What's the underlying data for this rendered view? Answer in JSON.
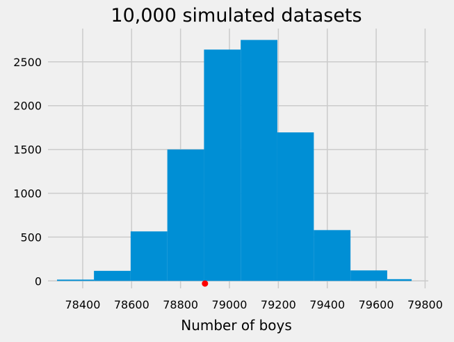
{
  "chart_data": {
    "type": "bar",
    "title": "10,000 simulated datasets",
    "xlabel": "Number of boys",
    "ylabel": "",
    "xlim": [
      78258,
      79813
    ],
    "ylim": [
      -85,
      2880
    ],
    "xticks": [
      78400,
      78600,
      78800,
      79000,
      79200,
      79400,
      79600,
      79800
    ],
    "xtick_labels": [
      "78400",
      "78600",
      "78800",
      "79000",
      "79200",
      "79400",
      "79600",
      "79800"
    ],
    "yticks": [
      0,
      500,
      1000,
      1500,
      2000,
      2500
    ],
    "ytick_labels": [
      "0",
      "500",
      "1000",
      "1500",
      "2000",
      "2500"
    ],
    "grid": true,
    "bins": [
      {
        "x0": 78295,
        "x1": 78446,
        "count": 15
      },
      {
        "x0": 78446,
        "x1": 78596,
        "count": 115
      },
      {
        "x0": 78596,
        "x1": 78746,
        "count": 565
      },
      {
        "x0": 78746,
        "x1": 78896,
        "count": 1500
      },
      {
        "x0": 78896,
        "x1": 79046,
        "count": 2640
      },
      {
        "x0": 79046,
        "x1": 79196,
        "count": 2750
      },
      {
        "x0": 79196,
        "x1": 79345,
        "count": 1695
      },
      {
        "x0": 79345,
        "x1": 79495,
        "count": 580
      },
      {
        "x0": 79495,
        "x1": 79645,
        "count": 120
      },
      {
        "x0": 79645,
        "x1": 79745,
        "count": 20
      }
    ],
    "marker": {
      "x": 78900,
      "y": -30
    },
    "colors": {
      "bars": "#008fd5",
      "marker": "#ff0000",
      "grid": "#cbcbcb",
      "background": "#f0f0f0"
    }
  }
}
